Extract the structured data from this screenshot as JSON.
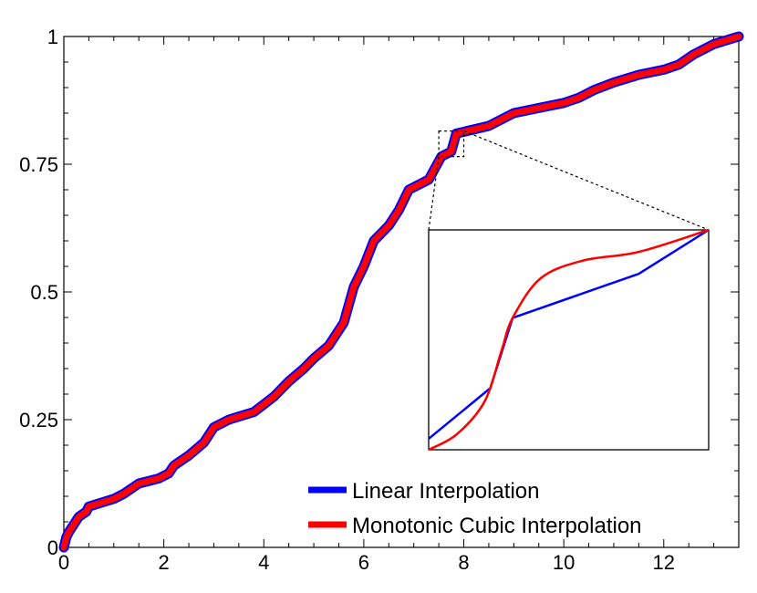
{
  "chart_data": {
    "type": "line",
    "title": "",
    "xlabel": "",
    "ylabel": "",
    "xlim": [
      0,
      13.5
    ],
    "ylim": [
      0,
      1
    ],
    "xticks": [
      0,
      2,
      4,
      6,
      8,
      10,
      12
    ],
    "xtick_labels": [
      "0",
      "2",
      "4",
      "6",
      "8",
      "10",
      "12"
    ],
    "yticks": [
      0,
      0.25,
      0.5,
      0.75,
      1
    ],
    "ytick_labels": [
      "0",
      "0.25",
      "0.5",
      "0.75",
      "1"
    ],
    "grid": false,
    "legend_position": "bottom-right",
    "series": [
      {
        "name": "Linear Interpolation",
        "color": "#0000ff",
        "x": [
          0,
          0.05,
          0.1,
          0.3,
          0.45,
          0.5,
          1.0,
          1.2,
          1.5,
          1.9,
          2.1,
          2.2,
          2.5,
          2.8,
          3.0,
          3.3,
          3.8,
          4.0,
          4.2,
          4.5,
          4.8,
          5.0,
          5.3,
          5.6,
          5.8,
          6.0,
          6.2,
          6.5,
          6.7,
          6.9,
          7.3,
          7.55,
          7.75,
          7.85,
          8.5,
          9.0,
          9.5,
          10.0,
          10.3,
          10.6,
          11.0,
          11.5,
          12.0,
          12.3,
          12.6,
          13.0,
          13.5
        ],
        "y": [
          0,
          0.02,
          0.03,
          0.06,
          0.07,
          0.08,
          0.095,
          0.105,
          0.125,
          0.135,
          0.145,
          0.16,
          0.18,
          0.205,
          0.235,
          0.25,
          0.265,
          0.28,
          0.295,
          0.325,
          0.35,
          0.37,
          0.395,
          0.44,
          0.51,
          0.55,
          0.6,
          0.63,
          0.66,
          0.7,
          0.72,
          0.765,
          0.775,
          0.81,
          0.825,
          0.85,
          0.86,
          0.87,
          0.88,
          0.895,
          0.91,
          0.925,
          0.935,
          0.945,
          0.965,
          0.985,
          1.0
        ]
      },
      {
        "name": "Monotonic Cubic Interpolation",
        "color": "#ff0000",
        "x": [
          0,
          0.05,
          0.1,
          0.3,
          0.45,
          0.5,
          1.0,
          1.2,
          1.5,
          1.9,
          2.1,
          2.2,
          2.5,
          2.8,
          3.0,
          3.3,
          3.8,
          4.0,
          4.2,
          4.5,
          4.8,
          5.0,
          5.3,
          5.6,
          5.8,
          6.0,
          6.2,
          6.5,
          6.7,
          6.9,
          7.3,
          7.55,
          7.75,
          7.85,
          8.5,
          9.0,
          9.5,
          10.0,
          10.3,
          10.6,
          11.0,
          11.5,
          12.0,
          12.3,
          12.6,
          13.0,
          13.5
        ],
        "y": [
          0,
          0.02,
          0.03,
          0.06,
          0.07,
          0.08,
          0.095,
          0.105,
          0.125,
          0.135,
          0.145,
          0.16,
          0.18,
          0.205,
          0.235,
          0.25,
          0.265,
          0.28,
          0.295,
          0.325,
          0.35,
          0.37,
          0.395,
          0.44,
          0.51,
          0.55,
          0.6,
          0.63,
          0.66,
          0.7,
          0.72,
          0.765,
          0.775,
          0.81,
          0.825,
          0.85,
          0.86,
          0.87,
          0.88,
          0.895,
          0.91,
          0.925,
          0.935,
          0.945,
          0.965,
          0.985,
          1.0
        ]
      }
    ],
    "inset": {
      "description_visible": false,
      "source_xlim": [
        7.5,
        8.0
      ],
      "source_ylim": [
        0.765,
        0.815
      ],
      "series": [
        {
          "name": "Linear Interpolation",
          "color": "#0000ff",
          "x": [
            0.0,
            0.22,
            0.3,
            0.75,
            1.0
          ],
          "y": [
            0.05,
            0.28,
            0.6,
            0.8,
            1.0
          ]
        },
        {
          "name": "Monotonic Cubic Interpolation",
          "color": "#ff0000",
          "x": [
            0.0,
            0.1,
            0.2,
            0.26,
            0.3,
            0.4,
            0.55,
            0.75,
            1.0
          ],
          "y": [
            0.0,
            0.07,
            0.22,
            0.45,
            0.6,
            0.78,
            0.86,
            0.9,
            1.0
          ]
        }
      ]
    }
  }
}
